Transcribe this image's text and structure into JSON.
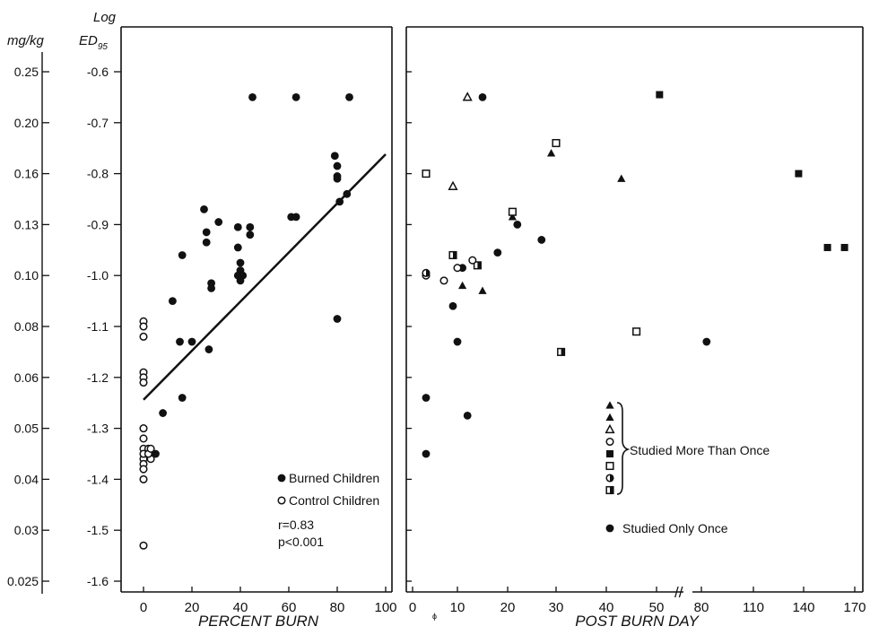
{
  "chart_data": [
    {
      "type": "scatter",
      "panel": "left",
      "xlabel": "PERCENT BURN",
      "x_ticks": [
        "0",
        "20",
        "40",
        "60",
        "80",
        "100"
      ],
      "xlim": [
        0,
        100
      ],
      "ylabel_left": "mg/kg",
      "ylabel_right_line1": "Log",
      "ylabel_right_line2": "ED",
      "ylabel_right_sub": "95",
      "y_ticks_log": [
        "-0.6",
        "-0.7",
        "-0.8",
        "-0.9",
        "-1.0",
        "-1.1",
        "-1.2",
        "-1.3",
        "-1.4",
        "-1.5",
        "-1.6"
      ],
      "y_ticks_mgkg": [
        "0.25",
        "0.20",
        "0.16",
        "0.13",
        "0.10",
        "0.08",
        "0.06",
        "0.05",
        "0.04",
        "0.03",
        "0.025"
      ],
      "ylim": [
        -1.6,
        -0.55
      ],
      "y_scale": "log",
      "regression": {
        "x": [
          0,
          100
        ],
        "y": [
          -1.244,
          -0.762
        ]
      },
      "legend": {
        "burned": "Burned Children",
        "control": "Control Children",
        "r": "r=0.83",
        "p": "p<0.001"
      },
      "series": [
        {
          "name": "Burned Children",
          "marker": "filled-circle",
          "points": [
            [
              5,
              -1.35
            ],
            [
              8,
              -1.27
            ],
            [
              12,
              -1.05
            ],
            [
              15,
              -1.13
            ],
            [
              16,
              -1.24
            ],
            [
              16,
              -0.96
            ],
            [
              20,
              -1.13
            ],
            [
              25,
              -0.87
            ],
            [
              26,
              -0.935
            ],
            [
              27,
              -1.145
            ],
            [
              26,
              -0.915
            ],
            [
              28,
              -1.015
            ],
            [
              28,
              -1.025
            ],
            [
              31,
              -0.895
            ],
            [
              39,
              -0.905
            ],
            [
              39,
              -0.945
            ],
            [
              40,
              -0.975
            ],
            [
              40,
              -0.99
            ],
            [
              39,
              -1.0
            ],
            [
              41,
              -1.0
            ],
            [
              40,
              -1.01
            ],
            [
              44,
              -0.905
            ],
            [
              44,
              -0.92
            ],
            [
              45,
              -0.65
            ],
            [
              61,
              -0.885
            ],
            [
              63,
              -0.885
            ],
            [
              63,
              -0.65
            ],
            [
              79,
              -0.765
            ],
            [
              80,
              -0.785
            ],
            [
              80,
              -0.805
            ],
            [
              80,
              -0.81
            ],
            [
              81,
              -0.855
            ],
            [
              80,
              -1.085
            ],
            [
              84,
              -0.84
            ],
            [
              85,
              -0.65
            ]
          ]
        },
        {
          "name": "Control Children",
          "marker": "open-circle",
          "points": [
            [
              0,
              -1.09
            ],
            [
              0,
              -1.1
            ],
            [
              0,
              -1.12
            ],
            [
              0,
              -1.19
            ],
            [
              0,
              -1.2
            ],
            [
              0,
              -1.21
            ],
            [
              0,
              -1.3
            ],
            [
              0,
              -1.32
            ],
            [
              0,
              -1.34
            ],
            [
              0,
              -1.36
            ],
            [
              0,
              -1.35
            ],
            [
              0,
              -1.37
            ],
            [
              0,
              -1.38
            ],
            [
              0,
              -1.4
            ],
            [
              0,
              -1.53
            ],
            [
              2,
              -1.34
            ],
            [
              3,
              -1.36
            ],
            [
              2,
              -1.35
            ],
            [
              3,
              -1.34
            ]
          ]
        }
      ]
    },
    {
      "type": "scatter",
      "panel": "right",
      "xlabel": "POST BURN DAY",
      "x_ticks": [
        "0",
        "10",
        "20",
        "30",
        "40",
        "50",
        "80",
        "110",
        "140",
        "170"
      ],
      "x_break_mark": "//",
      "x_origin_mark": "ɸ",
      "ylim": [
        -1.6,
        -0.55
      ],
      "legend": {
        "more_than_once": "Studied More Than Once",
        "only_once": "Studied Only Once",
        "markers": [
          "filled-triangle",
          "filled-triangle",
          "open-triangle",
          "open-circle",
          "filled-square",
          "open-square",
          "half-circle",
          "half-square"
        ]
      },
      "series": [
        {
          "name": "Studied Only Once",
          "marker": "filled-circle",
          "points": [
            [
              15,
              -0.65
            ],
            [
              3,
              -1.24
            ],
            [
              3,
              -1.35
            ],
            [
              9,
              -1.06
            ],
            [
              10,
              -1.13
            ],
            [
              12,
              -1.275
            ],
            [
              11,
              -0.985
            ],
            [
              18,
              -0.955
            ],
            [
              22,
              -0.9
            ],
            [
              27,
              -0.93
            ],
            [
              83,
              -1.13
            ]
          ]
        },
        {
          "name": "open-triangle",
          "marker": "open-triangle",
          "points": [
            [
              12,
              -0.65
            ],
            [
              9,
              -0.825
            ]
          ]
        },
        {
          "name": "filled-triangle",
          "marker": "filled-triangle",
          "points": [
            [
              29,
              -0.76
            ],
            [
              43,
              -0.81
            ],
            [
              21,
              -0.885
            ],
            [
              11,
              -1.02
            ],
            [
              15,
              -1.03
            ]
          ]
        },
        {
          "name": "filled-square",
          "marker": "filled-square",
          "points": [
            [
              52,
              -0.645
            ],
            [
              137,
              -0.8
            ],
            [
              154,
              -0.945
            ],
            [
              164,
              -0.945
            ]
          ]
        },
        {
          "name": "open-square",
          "marker": "open-square",
          "points": [
            [
              3,
              -0.8
            ],
            [
              30,
              -0.74
            ],
            [
              21,
              -0.875
            ],
            [
              46,
              -1.11
            ]
          ]
        },
        {
          "name": "half-square",
          "marker": "half-square",
          "points": [
            [
              9,
              -0.96
            ],
            [
              14,
              -0.98
            ],
            [
              31,
              -1.15
            ]
          ]
        },
        {
          "name": "open-circle",
          "marker": "open-circle",
          "points": [
            [
              3,
              -1.0
            ],
            [
              7,
              -1.01
            ],
            [
              10,
              -0.985
            ],
            [
              13,
              -0.97
            ]
          ]
        },
        {
          "name": "half-circle",
          "marker": "half-circle",
          "points": [
            [
              3,
              -0.995
            ]
          ]
        }
      ]
    }
  ]
}
